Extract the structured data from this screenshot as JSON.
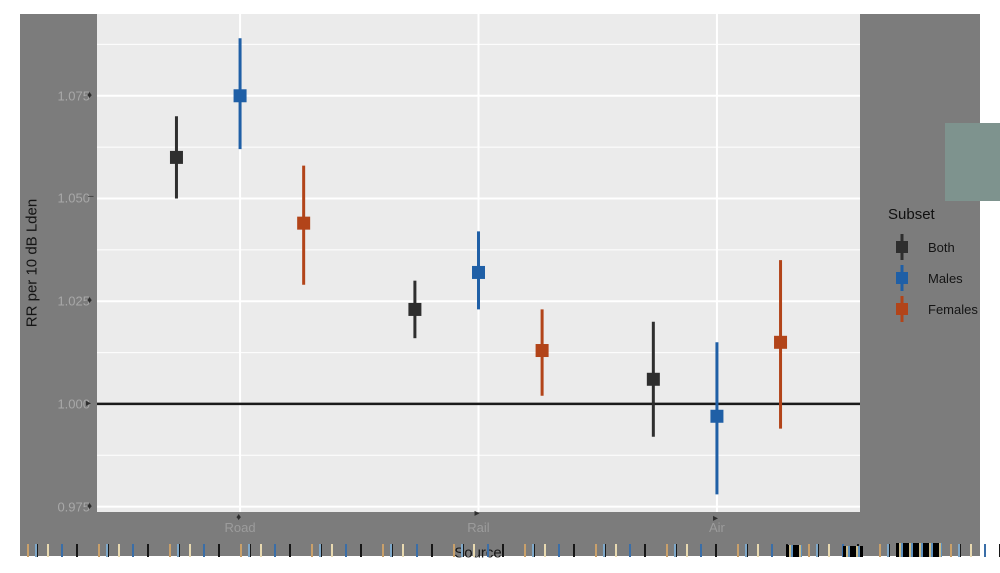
{
  "figure": {
    "margin_color": "#7c7c7c",
    "panel_color": "#ebebeb",
    "gridline_color": "#ffffff",
    "reference_line_color": "#1a1a1a"
  },
  "axes": {
    "x": {
      "title": "Source",
      "ticks": [
        "Road",
        "Rail",
        "Air"
      ]
    },
    "y": {
      "title": "RR per 10 dB Lden",
      "ticks": [
        "0.975",
        "1.000",
        "1.025",
        "1.050",
        "1.075"
      ]
    }
  },
  "legend": {
    "title": "Subset",
    "entries": [
      {
        "label": "Both",
        "color": "#2e2e2e"
      },
      {
        "label": "Males",
        "color": "#1f5fa6"
      },
      {
        "label": "Females",
        "color": "#b24419"
      }
    ]
  },
  "chart_data": {
    "type": "pointrange",
    "title": "",
    "xlabel": "Source",
    "ylabel": "RR per 10 dB Lden",
    "categories": [
      "Road",
      "Rail",
      "Air"
    ],
    "y_ticks": [
      0.975,
      1.0,
      1.025,
      1.05,
      1.075
    ],
    "y_minor_ticks": [
      0.9875,
      1.0125,
      1.0375,
      1.0625,
      1.0875
    ],
    "ylim": [
      0.9737,
      1.0949
    ],
    "reference_line": 1.0,
    "grid": "major+minor, white on grey panel",
    "legend_position": "right",
    "legend_title": "Subset",
    "series": [
      {
        "name": "Both",
        "color": "#2e2e2e",
        "values": [
          {
            "x": "Road",
            "y": 1.06,
            "lo": 1.05,
            "hi": 1.07
          },
          {
            "x": "Rail",
            "y": 1.023,
            "lo": 1.016,
            "hi": 1.03
          },
          {
            "x": "Air",
            "y": 1.006,
            "lo": 0.992,
            "hi": 1.02
          }
        ]
      },
      {
        "name": "Males",
        "color": "#1f5fa6",
        "values": [
          {
            "x": "Road",
            "y": 1.075,
            "lo": 1.062,
            "hi": 1.089
          },
          {
            "x": "Rail",
            "y": 1.032,
            "lo": 1.023,
            "hi": 1.042
          },
          {
            "x": "Air",
            "y": 0.997,
            "lo": 0.978,
            "hi": 1.015
          }
        ]
      },
      {
        "name": "Females",
        "color": "#b24419",
        "values": [
          {
            "x": "Road",
            "y": 1.044,
            "lo": 1.029,
            "hi": 1.058
          },
          {
            "x": "Rail",
            "y": 1.013,
            "lo": 1.002,
            "hi": 1.023
          },
          {
            "x": "Air",
            "y": 1.015,
            "lo": 0.994,
            "hi": 1.035
          }
        ]
      }
    ]
  }
}
